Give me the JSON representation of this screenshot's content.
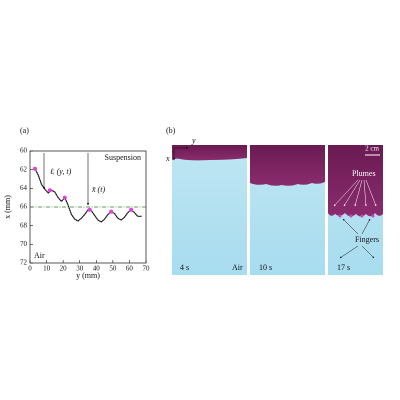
{
  "chart_data": {
    "type": "line",
    "panel_label": "(a)",
    "xlabel": "y (mm)",
    "ylabel": "x (mm)",
    "xlim": [
      0,
      70
    ],
    "xticks": [
      0,
      10,
      20,
      30,
      40,
      50,
      60,
      70
    ],
    "ylim": [
      60,
      72
    ],
    "yticks": [
      60,
      62,
      64,
      66,
      68,
      70,
      72
    ],
    "y_inverted": true,
    "series": [
      {
        "color": "#111111",
        "style": "dotted",
        "x": [
          3,
          5,
          7,
          9,
          11,
          13,
          15,
          17,
          19,
          21,
          23,
          25,
          27,
          29,
          31,
          33,
          35,
          37,
          39,
          41,
          43,
          45,
          47,
          49,
          51,
          53,
          55,
          57,
          59,
          61,
          63,
          65,
          67
        ],
        "values": [
          61.9,
          62.6,
          63.6,
          64.1,
          64.5,
          64.2,
          64.4,
          65.0,
          65.4,
          65.0,
          65.8,
          66.8,
          67.3,
          67.5,
          67.2,
          66.8,
          66.3,
          66.4,
          66.9,
          67.4,
          67.6,
          67.3,
          66.8,
          66.5,
          66.7,
          67.2,
          67.4,
          67.1,
          66.6,
          66.3,
          66.6,
          67.0,
          67.0
        ]
      },
      {
        "color": "#e040e0",
        "style": "points",
        "x": [
          3,
          12,
          21,
          36,
          49,
          61
        ],
        "values": [
          61.9,
          64.2,
          65.0,
          66.3,
          66.5,
          66.3
        ]
      }
    ],
    "mean_line": {
      "value": 66,
      "color": "#3a7a2a"
    },
    "annotations": {
      "suspension": "Suspension",
      "air": "Air",
      "local": "ℓᵢ (y, t)",
      "mean": "x̄ (t)"
    }
  },
  "panel_b": {
    "label": "(b)",
    "photos": [
      {
        "time": "4 s",
        "medium": "Air",
        "axis_y": "y",
        "axis_x": "x"
      },
      {
        "time": "10 s"
      },
      {
        "time": "17 s",
        "scale_bar": "2 cm",
        "plumes": "Plumes",
        "fingers": "Fingers"
      }
    ]
  }
}
